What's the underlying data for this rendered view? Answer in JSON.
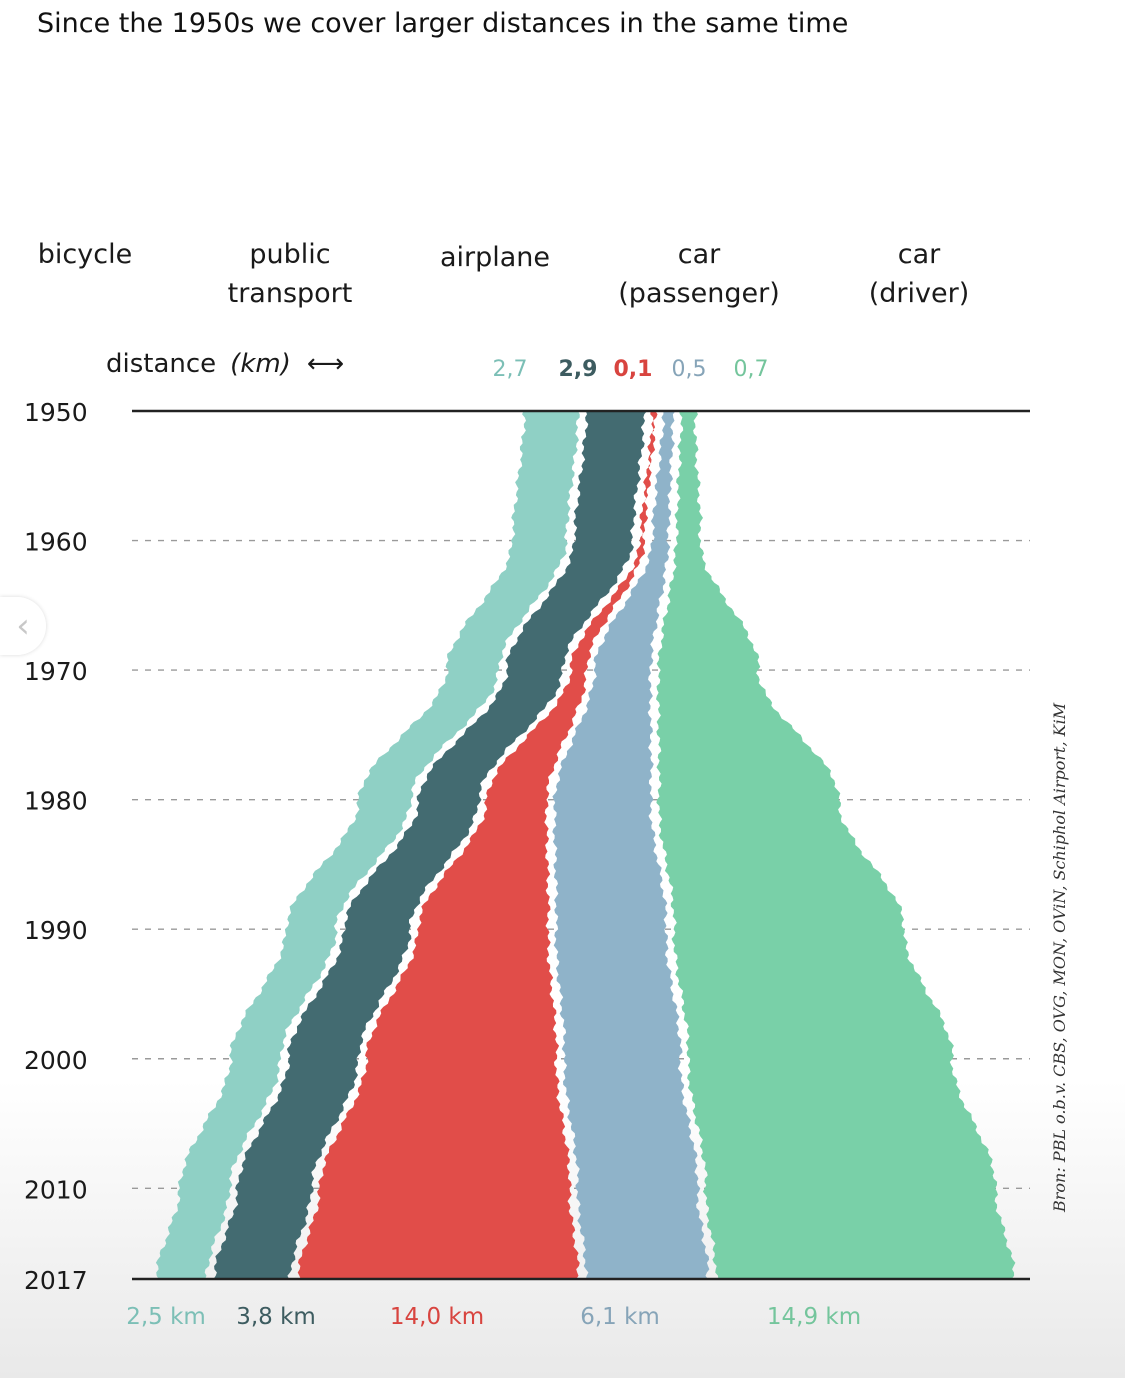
{
  "title": "Since the 1950s we cover larger distances in the same time",
  "modes": [
    {
      "key": "bicycle",
      "label_lines": [
        "bicycle"
      ],
      "icon": "bicycle-icon",
      "color": "#8fd0c5"
    },
    {
      "key": "public_transport",
      "label_lines": [
        "public",
        "transport"
      ],
      "icon": "bus-icon",
      "color": "#436b71"
    },
    {
      "key": "airplane",
      "label_lines": [
        "airplane"
      ],
      "icon": "airplane-icon",
      "color": "#e14d49"
    },
    {
      "key": "car_passenger",
      "label_lines": [
        "car",
        "(passenger)"
      ],
      "icon": "car-icon",
      "color": "#8fb3c9"
    },
    {
      "key": "car_driver",
      "label_lines": [
        "car",
        "(driver)"
      ],
      "icon": "car-icon",
      "color": "#79d0a8"
    }
  ],
  "distance_header": {
    "label": "distance",
    "unit": "(km)",
    "arrow": "⟷"
  },
  "source": "Bron: PBL o.b.v. CBS, OVG, MON, OViN, Schiphol Airport, KiM",
  "chart_data": {
    "type": "area",
    "subtype": "streamgraph",
    "x_axis": "year",
    "y_values_unit": "km",
    "years": [
      1950,
      1960,
      1970,
      1980,
      1990,
      2000,
      2010,
      2017
    ],
    "year_labels": [
      "1950",
      "1960",
      "1970",
      "1980",
      "1990",
      "2000",
      "2010",
      "2017"
    ],
    "grid": true,
    "series": [
      {
        "name": "bicycle",
        "color": "#8fd0c5",
        "label_color": "#7cbfb6",
        "start_label": "2,7",
        "end_label": "2,5 km",
        "values": [
          2.7,
          2.7,
          2.6,
          2.6,
          2.5,
          2.5,
          2.5,
          2.5
        ]
      },
      {
        "name": "public transport",
        "color": "#436b71",
        "label_color": "#3d5c60",
        "start_label": "2,9",
        "end_label": "3,8 km",
        "values": [
          2.9,
          2.9,
          2.8,
          3.0,
          3.3,
          3.5,
          3.7,
          3.8
        ]
      },
      {
        "name": "airplane",
        "color": "#e14d49",
        "label_color": "#d8443f",
        "start_label": "0,1",
        "end_label": "14,0 km",
        "values": [
          0.1,
          0.2,
          0.8,
          3.0,
          6.5,
          9.5,
          12.5,
          14.0
        ]
      },
      {
        "name": "car (passenger)",
        "color": "#8fb3c9",
        "label_color": "#86a4b8",
        "start_label": "0,5",
        "end_label": "6,1 km",
        "values": [
          0.5,
          0.8,
          2.8,
          4.8,
          5.5,
          5.8,
          6.0,
          6.1
        ]
      },
      {
        "name": "car (driver)",
        "color": "#79d0a8",
        "label_color": "#74c59c",
        "start_label": "0,7",
        "end_label": "14,9 km",
        "values": [
          0.7,
          1.2,
          5.0,
          9.0,
          11.5,
          13.2,
          14.5,
          14.9
        ]
      }
    ]
  }
}
